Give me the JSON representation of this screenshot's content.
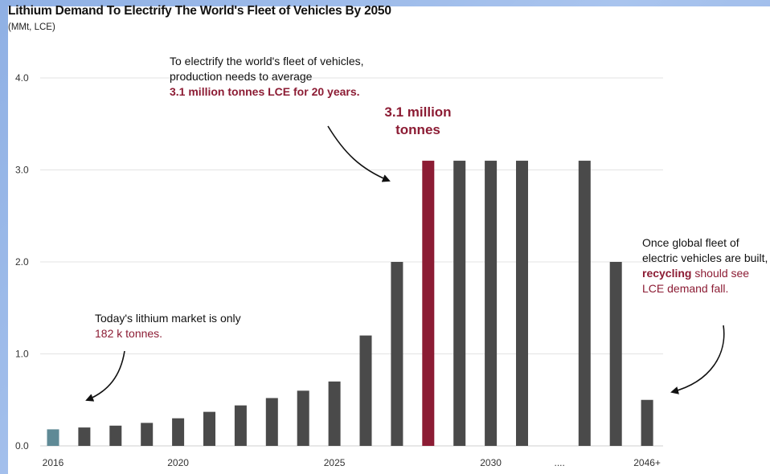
{
  "chart_data": {
    "type": "bar",
    "title": "Lithium Demand To Electrify The World's Fleet of Vehicles By 2050",
    "subtitle": "(MMt, LCE)",
    "ylim": [
      0,
      4
    ],
    "yticks": [
      "0.0",
      "1.0",
      "2.0",
      "3.0",
      "4.0"
    ],
    "xtick_labels": [
      {
        "label": "2016",
        "index": 0
      },
      {
        "label": "2020",
        "index": 4
      },
      {
        "label": "2025",
        "index": 9
      },
      {
        "label": "2030",
        "index": 14
      },
      {
        "label": "....",
        "index": 16.2
      },
      {
        "label": "2046+",
        "index": 19
      }
    ],
    "values": [
      0.18,
      0.2,
      0.22,
      0.25,
      0.3,
      0.37,
      0.44,
      0.52,
      0.6,
      0.7,
      1.2,
      2.0,
      3.1,
      3.1,
      3.1,
      3.1,
      null,
      3.1,
      2.0,
      0.5
    ],
    "bar_colors": {
      "current": "#5f8a96",
      "highlight": "#8c1c34",
      "default": "#4a4a4a"
    },
    "current_index": 0,
    "highlight_index": 12,
    "grid": true,
    "annotations": {
      "top_line1": "To electrify the world's fleet of vehicles,",
      "top_line2": "production needs to average",
      "top_line3": "3.1 million tonnes LCE for 20 years.",
      "peak_line1": "3.1 million",
      "peak_line2": "tonnes",
      "left_line1": "Today's lithium market is only",
      "left_line2": "182 k tonnes.",
      "right_line1": "Once global fleet of",
      "right_line2": "electric vehicles are built,",
      "right_line3_bold": "recycling",
      "right_line3_rest": " should see",
      "right_line4": "LCE demand fall."
    }
  }
}
